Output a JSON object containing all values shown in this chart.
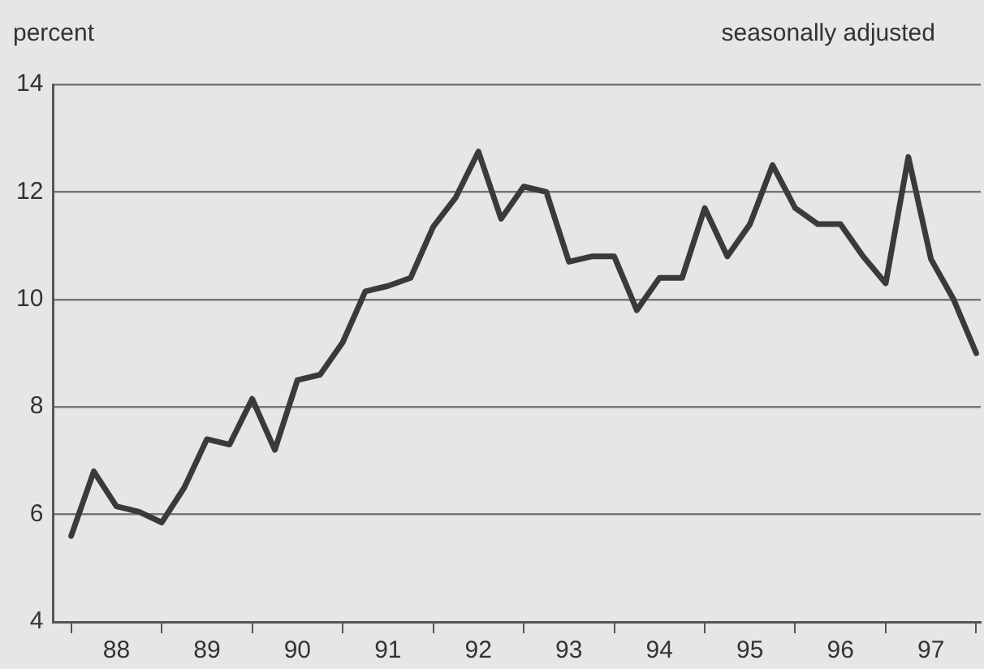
{
  "chart_data": {
    "type": "line",
    "ylabel": "percent",
    "annotations": [
      "seasonally adjusted"
    ],
    "categories": [
      null,
      null,
      "88",
      null,
      null,
      null,
      "89",
      null,
      null,
      null,
      "90",
      null,
      null,
      null,
      "91",
      null,
      null,
      null,
      "92",
      null,
      null,
      null,
      "93",
      null,
      null,
      null,
      "94",
      null,
      null,
      null,
      "95",
      null,
      null,
      null,
      "96",
      null,
      null,
      null,
      "97",
      null,
      null
    ],
    "series": [
      {
        "color": "#3a3a3a",
        "values": [
          5.6,
          6.8,
          6.15,
          6.05,
          5.85,
          6.5,
          7.4,
          7.3,
          8.15,
          7.2,
          8.5,
          8.6,
          9.2,
          10.15,
          10.25,
          10.4,
          11.35,
          11.9,
          12.75,
          11.5,
          12.1,
          12.0,
          10.7,
          10.8,
          10.8,
          9.8,
          10.4,
          10.4,
          11.7,
          10.8,
          11.4,
          12.5,
          11.7,
          11.4,
          11.4,
          10.8,
          10.3,
          12.65,
          10.75,
          10.0,
          9.0
        ]
      }
    ],
    "ylim": [
      4,
      14
    ],
    "yticks": [
      4,
      6,
      8,
      10,
      12,
      14
    ],
    "grid": "y",
    "marker": "none",
    "line_style": "solid"
  }
}
